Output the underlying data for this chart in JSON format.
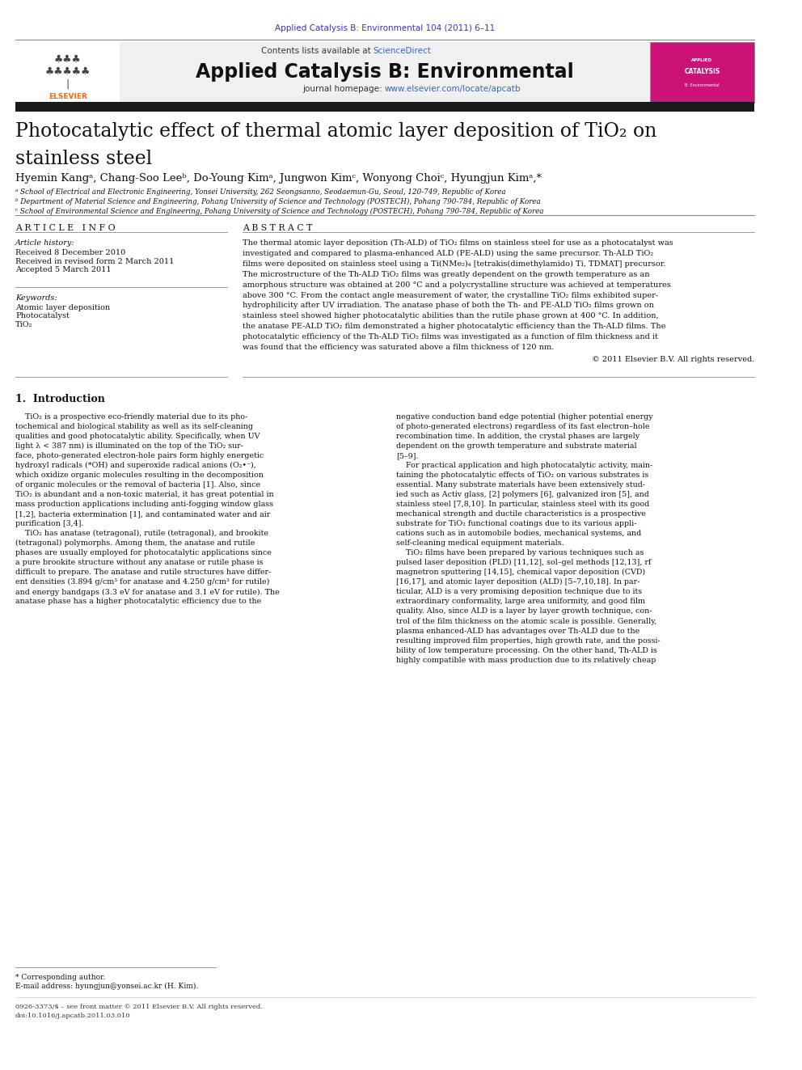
{
  "bg_color": "#ffffff",
  "page_width": 9.92,
  "page_height": 13.23,
  "journal_ref": "Applied Catalysis B: Environmental 104 (2011) 6–11",
  "journal_ref_color": "#3333cc",
  "contents_text": "Contents lists available at ",
  "sciencedirect_text": "ScienceDirect",
  "sciencedirect_color": "#3366cc",
  "journal_name": "Applied Catalysis B: Environmental",
  "journal_homepage_prefix": "journal homepage: ",
  "journal_homepage_url": "www.elsevier.com/locate/apcatb",
  "journal_homepage_color": "#3366cc",
  "header_bg": "#f0f0f0",
  "black_bar_color": "#1a1a1a",
  "title_line1": "Photocatalytic effect of thermal atomic layer deposition of TiO₂ on",
  "title_line2": "stainless steel",
  "affiliation_a": "ᵃ School of Electrical and Electronic Engineering, Yonsei University, 262 Seongsanno, Seodaemun-Gu, Seoul, 120-749, Republic of Korea",
  "affiliation_b": "ᵇ Department of Material Science and Engineering, Pohang University of Science and Technology (POSTECH), Pohang 790-784, Republic of Korea",
  "affiliation_c": "ᶜ School of Environmental Science and Engineering, Pohang University of Science and Technology (POSTECH), Pohang 790-784, Republic of Korea",
  "article_info_header": "A R T I C L E   I N F O",
  "abstract_header": "A B S T R A C T",
  "article_history_label": "Article history:",
  "received_date": "Received 8 December 2010",
  "revised_date": "Received in revised form 2 March 2011",
  "accepted_date": "Accepted 5 March 2011",
  "keywords_label": "Keywords:",
  "keyword1": "Atomic layer deposition",
  "keyword2": "Photocatalyst",
  "keyword3": "TiO₂",
  "abstract_text": "The thermal atomic layer deposition (Th-ALD) of TiO₂ films on stainless steel for use as a photocatalyst was\ninvestigated and compared to plasma-enhanced ALD (PE-ALD) using the same precursor. Th-ALD TiO₂\nfilms were deposited on stainless steel using a Ti(NMe₂)₄ [tetrakis(dimethylamido) Ti, TDMAT] precursor.\nThe microstructure of the Th-ALD TiO₂ films was greatly dependent on the growth temperature as an\namorphous structure was obtained at 200 °C and a polycrystalline structure was achieved at temperatures\nabove 300 °C. From the contact angle measurement of water, the crystalline TiO₂ films exhibited super-\nhydrophilicity after UV irradiation. The anatase phase of both the Th- and PE-ALD TiO₂ films grown on\nstainless steel showed higher photocatalytic abilities than the rutile phase grown at 400 °C. In addition,\nthe anatase PE-ALD TiO₂ film demonstrated a higher photocatalytic efficiency than the Th-ALD films. The\nphotocatalytic efficiency of the Th-ALD TiO₂ films was investigated as a function of film thickness and it\nwas found that the efficiency was saturated above a film thickness of 120 nm.",
  "copyright_text": "© 2011 Elsevier B.V. All rights reserved.",
  "intro_header": "1.  Introduction",
  "intro_col1": [
    "    TiO₂ is a prospective eco-friendly material due to its pho-",
    "tochemical and biological stability as well as its self-cleaning",
    "qualities and good photocatalytic ability. Specifically, when UV",
    "light λ < 387 nm) is illuminated on the top of the TiO₂ sur-",
    "face, photo-generated electron-hole pairs form highly energetic",
    "hydroxyl radicals (*OH) and superoxide radical anions (O₂•⁻),",
    "which oxidize organic molecules resulting in the decomposition",
    "of organic molecules or the removal of bacteria [1]. Also, since",
    "TiO₂ is abundant and a non-toxic material, it has great potential in",
    "mass production applications including anti-fogging window glass",
    "[1,2], bacteria extermination [1], and contaminated water and air",
    "purification [3,4].",
    "    TiO₂ has anatase (tetragonal), rutile (tetragonal), and brookite",
    "(tetragonal) polymorphs. Among them, the anatase and rutile",
    "phases are usually employed for photocatalytic applications since",
    "a pure brookite structure without any anatase or rutile phase is",
    "difficult to prepare. The anatase and rutile structures have differ-",
    "ent densities (3.894 g/cm³ for anatase and 4.250 g/cm³ for rutile)",
    "and energy bandgaps (3.3 eV for anatase and 3.1 eV for rutile). The",
    "anatase phase has a higher photocatalytic efficiency due to the"
  ],
  "intro_col2": [
    "negative conduction band edge potential (higher potential energy",
    "of photo-generated electrons) regardless of its fast electron–hole",
    "recombination time. In addition, the crystal phases are largely",
    "dependent on the growth temperature and substrate material",
    "[5–9].",
    "    For practical application and high photocatalytic activity, main-",
    "taining the photocatalytic effects of TiO₂ on various substrates is",
    "essential. Many substrate materials have been extensively stud-",
    "ied such as Activ glass, [2] polymers [6], galvanized iron [5], and",
    "stainless steel [7,8,10]. In particular, stainless steel with its good",
    "mechanical strength and ductile characteristics is a prospective",
    "substrate for TiO₂ functional coatings due to its various appli-",
    "cations such as in automobile bodies, mechanical systems, and",
    "self-cleaning medical equipment materials.",
    "    TiO₂ films have been prepared by various techniques such as",
    "pulsed laser deposition (PLD) [11,12], sol–gel methods [12,13], rf",
    "magnetron sputtering [14,15], chemical vapor deposition (CVD)",
    "[16,17], and atomic layer deposition (ALD) [5–7,10,18]. In par-",
    "ticular, ALD is a very promising deposition technique due to its",
    "extraordinary conformality, large area uniformity, and good film",
    "quality. Also, since ALD is a layer by layer growth technique, con-",
    "trol of the film thickness on the atomic scale is possible. Generally,",
    "plasma enhanced-ALD has advantages over Th-ALD due to the",
    "resulting improved film properties, high growth rate, and the possi-",
    "bility of low temperature processing. On the other hand, Th-ALD is",
    "highly compatible with mass production due to its relatively cheap"
  ],
  "footnote_corresponding": "* Corresponding author.",
  "footnote_email": "E-mail address: hyungjun@yonsei.ac.kr (H. Kim).",
  "footnote_issn": "0926-3373/$ – see front matter © 2011 Elsevier B.V. All rights reserved.",
  "footnote_doi": "doi:10.1016/j.apcatb.2011.03.010"
}
